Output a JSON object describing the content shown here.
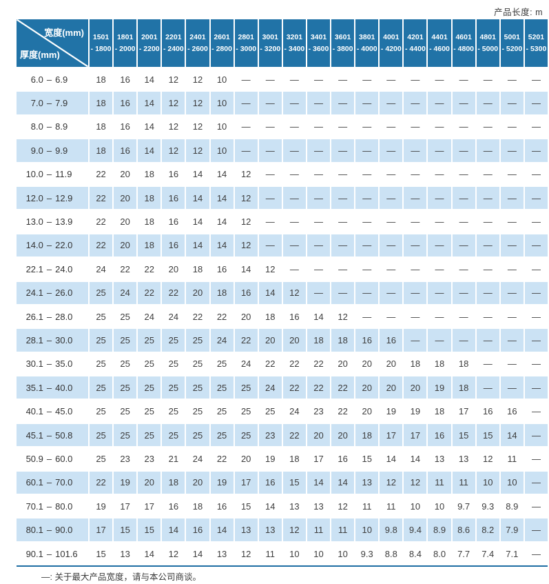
{
  "page": {
    "top_right_label": "产品长度: m",
    "footnote": "—: 关于最大产品宽度，请与本公司商谈。"
  },
  "colors": {
    "header_blue": "#2173a7",
    "stripe_blue": "#cbe2f4",
    "rule_blue": "#1e6da3",
    "text_dark": "#3d3d3d"
  },
  "table": {
    "corner": {
      "width_label": "宽度(mm)",
      "thickness_label": "厚度(mm)"
    },
    "range_dash": "–",
    "columns": [
      {
        "line1": "1501",
        "line2": "- 1800"
      },
      {
        "line1": "1801",
        "line2": "- 2000"
      },
      {
        "line1": "2001",
        "line2": "- 2200"
      },
      {
        "line1": "2201",
        "line2": "- 2400"
      },
      {
        "line1": "2401",
        "line2": "- 2600"
      },
      {
        "line1": "2601",
        "line2": "- 2800"
      },
      {
        "line1": "2801",
        "line2": "- 3000"
      },
      {
        "line1": "3001",
        "line2": "- 3200"
      },
      {
        "line1": "3201",
        "line2": "- 3400"
      },
      {
        "line1": "3401",
        "line2": "- 3600"
      },
      {
        "line1": "3601",
        "line2": "- 3800"
      },
      {
        "line1": "3801",
        "line2": "- 4000"
      },
      {
        "line1": "4001",
        "line2": "- 4200"
      },
      {
        "line1": "4201",
        "line2": "- 4400"
      },
      {
        "line1": "4401",
        "line2": "- 4600"
      },
      {
        "line1": "4601",
        "line2": "- 4800"
      },
      {
        "line1": "4801",
        "line2": "- 5000"
      },
      {
        "line1": "5001",
        "line2": "- 5200"
      },
      {
        "line1": "5201",
        "line2": "- 5300"
      }
    ],
    "rows": [
      {
        "min": "6.0",
        "max": "6.9",
        "values": [
          "18",
          "16",
          "14",
          "12",
          "12",
          "10",
          "—",
          "—",
          "—",
          "—",
          "—",
          "—",
          "—",
          "—",
          "—",
          "—",
          "—",
          "—",
          "—"
        ]
      },
      {
        "min": "7.0",
        "max": "7.9",
        "values": [
          "18",
          "16",
          "14",
          "12",
          "12",
          "10",
          "—",
          "—",
          "—",
          "—",
          "—",
          "—",
          "—",
          "—",
          "—",
          "—",
          "—",
          "—",
          "—"
        ]
      },
      {
        "min": "8.0",
        "max": "8.9",
        "values": [
          "18",
          "16",
          "14",
          "12",
          "12",
          "10",
          "—",
          "—",
          "—",
          "—",
          "—",
          "—",
          "—",
          "—",
          "—",
          "—",
          "—",
          "—",
          "—"
        ]
      },
      {
        "min": "9.0",
        "max": "9.9",
        "values": [
          "18",
          "16",
          "14",
          "12",
          "12",
          "10",
          "—",
          "—",
          "—",
          "—",
          "—",
          "—",
          "—",
          "—",
          "—",
          "—",
          "—",
          "—",
          "—"
        ]
      },
      {
        "min": "10.0",
        "max": "11.9",
        "values": [
          "22",
          "20",
          "18",
          "16",
          "14",
          "14",
          "12",
          "—",
          "—",
          "—",
          "—",
          "—",
          "—",
          "—",
          "—",
          "—",
          "—",
          "—",
          "—"
        ]
      },
      {
        "min": "12.0",
        "max": "12.9",
        "values": [
          "22",
          "20",
          "18",
          "16",
          "14",
          "14",
          "12",
          "—",
          "—",
          "—",
          "—",
          "—",
          "—",
          "—",
          "—",
          "—",
          "—",
          "—",
          "—"
        ]
      },
      {
        "min": "13.0",
        "max": "13.9",
        "values": [
          "22",
          "20",
          "18",
          "16",
          "14",
          "14",
          "12",
          "—",
          "—",
          "—",
          "—",
          "—",
          "—",
          "—",
          "—",
          "—",
          "—",
          "—",
          "—"
        ]
      },
      {
        "min": "14.0",
        "max": "22.0",
        "values": [
          "22",
          "20",
          "18",
          "16",
          "14",
          "14",
          "12",
          "—",
          "—",
          "—",
          "—",
          "—",
          "—",
          "—",
          "—",
          "—",
          "—",
          "—",
          "—"
        ]
      },
      {
        "min": "22.1",
        "max": "24.0",
        "values": [
          "24",
          "22",
          "22",
          "20",
          "18",
          "16",
          "14",
          "12",
          "—",
          "—",
          "—",
          "—",
          "—",
          "—",
          "—",
          "—",
          "—",
          "—",
          "—"
        ]
      },
      {
        "min": "24.1",
        "max": "26.0",
        "values": [
          "25",
          "24",
          "22",
          "22",
          "20",
          "18",
          "16",
          "14",
          "12",
          "—",
          "—",
          "—",
          "—",
          "—",
          "—",
          "—",
          "—",
          "—",
          "—"
        ]
      },
      {
        "min": "26.1",
        "max": "28.0",
        "values": [
          "25",
          "25",
          "24",
          "24",
          "22",
          "22",
          "20",
          "18",
          "16",
          "14",
          "12",
          "—",
          "—",
          "—",
          "—",
          "—",
          "—",
          "—",
          "—"
        ]
      },
      {
        "min": "28.1",
        "max": "30.0",
        "values": [
          "25",
          "25",
          "25",
          "25",
          "25",
          "24",
          "22",
          "20",
          "20",
          "18",
          "18",
          "16",
          "16",
          "—",
          "—",
          "—",
          "—",
          "—",
          "—"
        ]
      },
      {
        "min": "30.1",
        "max": "35.0",
        "values": [
          "25",
          "25",
          "25",
          "25",
          "25",
          "25",
          "24",
          "22",
          "22",
          "22",
          "20",
          "20",
          "20",
          "18",
          "18",
          "18",
          "—",
          "—",
          "—"
        ]
      },
      {
        "min": "35.1",
        "max": "40.0",
        "values": [
          "25",
          "25",
          "25",
          "25",
          "25",
          "25",
          "25",
          "24",
          "22",
          "22",
          "22",
          "20",
          "20",
          "20",
          "19",
          "18",
          "—",
          "—",
          "—"
        ]
      },
      {
        "min": "40.1",
        "max": "45.0",
        "values": [
          "25",
          "25",
          "25",
          "25",
          "25",
          "25",
          "25",
          "25",
          "24",
          "23",
          "22",
          "20",
          "19",
          "19",
          "18",
          "17",
          "16",
          "16",
          "—"
        ]
      },
      {
        "min": "45.1",
        "max": "50.8",
        "values": [
          "25",
          "25",
          "25",
          "25",
          "25",
          "25",
          "25",
          "23",
          "22",
          "20",
          "20",
          "18",
          "17",
          "17",
          "16",
          "15",
          "15",
          "14",
          "—"
        ]
      },
      {
        "min": "50.9",
        "max": "60.0",
        "values": [
          "25",
          "23",
          "23",
          "21",
          "24",
          "22",
          "20",
          "19",
          "18",
          "17",
          "16",
          "15",
          "14",
          "14",
          "13",
          "13",
          "12",
          "11",
          "—"
        ]
      },
      {
        "min": "60.1",
        "max": "70.0",
        "values": [
          "22",
          "19",
          "20",
          "18",
          "20",
          "19",
          "17",
          "16",
          "15",
          "14",
          "14",
          "13",
          "12",
          "12",
          "11",
          "11",
          "10",
          "10",
          "—"
        ]
      },
      {
        "min": "70.1",
        "max": "80.0",
        "values": [
          "19",
          "17",
          "17",
          "16",
          "18",
          "16",
          "15",
          "14",
          "13",
          "13",
          "12",
          "11",
          "11",
          "10",
          "10",
          "9.7",
          "9.3",
          "8.9",
          "—"
        ]
      },
      {
        "min": "80.1",
        "max": "90.0",
        "values": [
          "17",
          "15",
          "15",
          "14",
          "16",
          "14",
          "13",
          "13",
          "12",
          "11",
          "11",
          "10",
          "9.8",
          "9.4",
          "8.9",
          "8.6",
          "8.2",
          "7.9",
          "—"
        ]
      },
      {
        "min": "90.1",
        "max": "101.6",
        "values": [
          "15",
          "13",
          "14",
          "12",
          "14",
          "13",
          "12",
          "11",
          "10",
          "10",
          "10",
          "9.3",
          "8.8",
          "8.4",
          "8.0",
          "7.7",
          "7.4",
          "7.1",
          "—"
        ]
      }
    ]
  }
}
